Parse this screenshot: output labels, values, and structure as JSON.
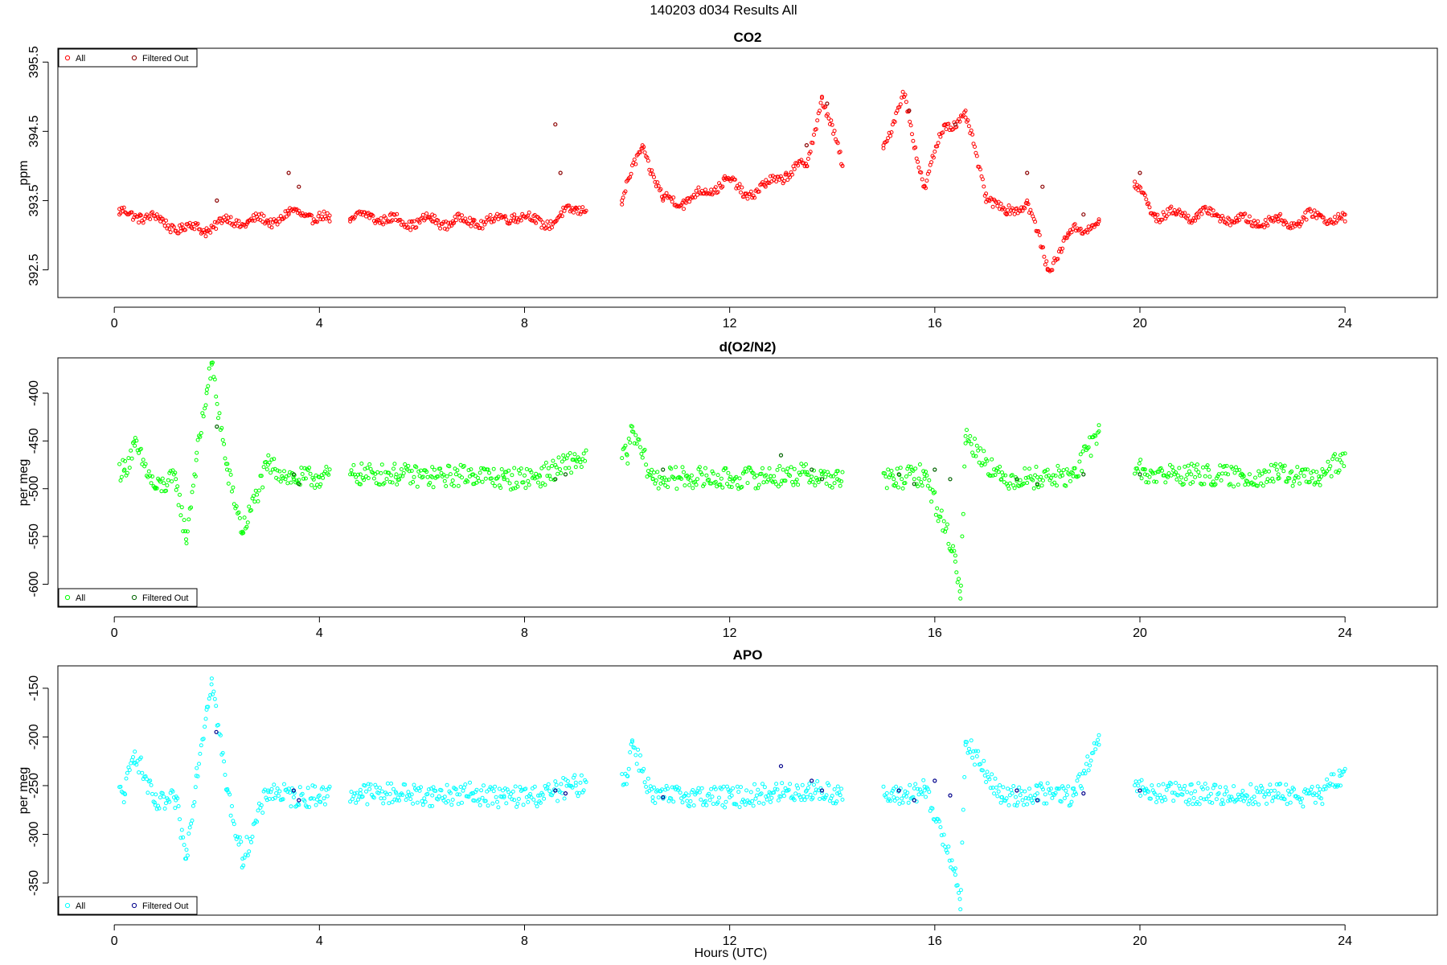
{
  "figure": {
    "title": "140203   d034   Results All",
    "xlabel": "Hours (UTC)"
  },
  "chart_data": [
    {
      "type": "scatter",
      "title": "CO2",
      "ylabel": "ppm",
      "xlim": [
        -1.1,
        25.8
      ],
      "ylim": [
        392.1,
        395.7
      ],
      "xticks": [
        0,
        4,
        8,
        12,
        16,
        20,
        24
      ],
      "yticks": [
        392.5,
        393.5,
        394.5,
        395.5
      ],
      "colors": {
        "all": "#ff0000",
        "filtered": "#8b0000"
      },
      "legend": {
        "position": "top-left",
        "entries": [
          "All",
          "Filtered Out"
        ]
      },
      "segments": [
        [
          0.1,
          4.2
        ],
        [
          4.6,
          9.2
        ],
        [
          9.9,
          14.2
        ],
        [
          15.0,
          19.2
        ],
        [
          19.9,
          24.0
        ]
      ],
      "series": [
        {
          "name": "All",
          "x": [
            0.1,
            0.5,
            0.9,
            1.3,
            1.8,
            2.2,
            2.6,
            3.0,
            3.4,
            3.8,
            4.2,
            4.6,
            5.0,
            5.4,
            5.8,
            6.2,
            6.6,
            7.0,
            7.4,
            7.8,
            8.2,
            8.6,
            9.0,
            9.9,
            10.3,
            10.7,
            11.1,
            11.5,
            11.9,
            12.3,
            12.7,
            13.1,
            13.5,
            13.8,
            14.2,
            15.0,
            15.4,
            15.8,
            16.2,
            16.6,
            17.0,
            17.4,
            17.8,
            18.2,
            18.6,
            19.2,
            19.9,
            20.3,
            20.7,
            21.1,
            21.5,
            21.9,
            22.3,
            22.7,
            23.1,
            23.5,
            24.0
          ],
          "y": [
            393.3,
            393.3,
            393.2,
            393.1,
            393.1,
            393.2,
            393.2,
            393.2,
            393.3,
            393.3,
            393.2,
            393.2,
            393.3,
            393.2,
            393.2,
            393.2,
            393.2,
            393.2,
            393.2,
            393.3,
            393.2,
            393.2,
            393.4,
            393.5,
            394.3,
            393.5,
            393.5,
            393.6,
            393.8,
            393.6,
            393.7,
            393.9,
            394.0,
            395.0,
            394.0,
            394.3,
            395.0,
            393.7,
            394.6,
            394.7,
            393.6,
            393.3,
            393.5,
            392.5,
            393.0,
            393.2,
            393.7,
            393.3,
            393.3,
            393.3,
            393.3,
            393.2,
            393.2,
            393.2,
            393.2,
            393.3,
            393.2
          ]
        },
        {
          "name": "Filtered Out",
          "x": [
            2.0,
            3.4,
            3.6,
            8.6,
            8.7,
            13.5,
            13.9,
            15.5,
            16.4,
            17.8,
            18.1,
            18.9,
            20.0
          ],
          "y": [
            393.5,
            393.9,
            393.7,
            394.6,
            393.9,
            394.3,
            394.9,
            394.8,
            394.6,
            393.9,
            393.7,
            393.3,
            393.9
          ]
        }
      ]
    },
    {
      "type": "scatter",
      "title": "d(O2/N2)",
      "ylabel": "per meg",
      "xlim": [
        -1.1,
        25.8
      ],
      "ylim": [
        -624,
        -363
      ],
      "xticks": [
        0,
        4,
        8,
        12,
        16,
        20,
        24
      ],
      "yticks": [
        -600,
        -550,
        -500,
        -450,
        -400
      ],
      "colors": {
        "all": "#00ff00",
        "filtered": "#006400"
      },
      "legend": {
        "position": "bottom-left",
        "entries": [
          "All",
          "Filtered Out"
        ]
      },
      "segments": [
        [
          0.1,
          4.2
        ],
        [
          4.6,
          9.2
        ],
        [
          9.9,
          14.2
        ],
        [
          15.0,
          19.2
        ],
        [
          19.9,
          24.0
        ]
      ],
      "series": [
        {
          "name": "All",
          "x": [
            0.2,
            0.4,
            0.8,
            1.2,
            1.4,
            1.6,
            1.8,
            1.9,
            2.2,
            2.5,
            3.0,
            3.5,
            4.0,
            4.8,
            5.5,
            6.2,
            7.0,
            7.6,
            8.3,
            9.0,
            10.0,
            10.1,
            10.5,
            11.2,
            12.0,
            12.8,
            13.5,
            14.1,
            15.2,
            15.8,
            16.4,
            16.5,
            16.6,
            17.3,
            18.0,
            18.7,
            19.2,
            20.1,
            21.0,
            22.0,
            22.7,
            23.5,
            23.9
          ],
          "y": [
            -480,
            -455,
            -500,
            -490,
            -553,
            -470,
            -400,
            -370,
            -480,
            -545,
            -475,
            -490,
            -488,
            -485,
            -485,
            -488,
            -485,
            -490,
            -487,
            -470,
            -465,
            -440,
            -490,
            -488,
            -490,
            -487,
            -485,
            -490,
            -490,
            -485,
            -570,
            -615,
            -445,
            -490,
            -488,
            -487,
            -440,
            -485,
            -485,
            -488,
            -485,
            -490,
            -470
          ]
        },
        {
          "name": "Filtered Out",
          "x": [
            2.0,
            3.5,
            3.6,
            8.6,
            8.8,
            10.7,
            13.0,
            13.6,
            13.8,
            15.3,
            15.6,
            16.0,
            16.3,
            17.6,
            18.0,
            18.9,
            20.0
          ],
          "y": [
            -435,
            -485,
            -495,
            -490,
            -485,
            -480,
            -465,
            -480,
            -490,
            -485,
            -495,
            -480,
            -490,
            -490,
            -495,
            -485,
            -485
          ]
        }
      ]
    },
    {
      "type": "scatter",
      "title": "APO",
      "ylabel": "per meg",
      "xlim": [
        -1.1,
        25.8
      ],
      "ylim": [
        -383,
        -127
      ],
      "xticks": [
        0,
        4,
        8,
        12,
        16,
        20,
        24
      ],
      "yticks": [
        -350,
        -300,
        -250,
        -200,
        -150
      ],
      "colors": {
        "all": "#00ffff",
        "filtered": "#00008b"
      },
      "legend": {
        "position": "bottom-left",
        "entries": [
          "All",
          "Filtered Out"
        ]
      },
      "segments": [
        [
          0.1,
          4.2
        ],
        [
          4.6,
          9.2
        ],
        [
          9.9,
          14.2
        ],
        [
          15.0,
          19.2
        ],
        [
          19.9,
          24.0
        ]
      ],
      "series": [
        {
          "name": "All",
          "x": [
            0.2,
            0.4,
            0.8,
            1.2,
            1.4,
            1.6,
            1.8,
            1.9,
            2.2,
            2.5,
            3.0,
            3.5,
            4.0,
            4.8,
            5.5,
            6.2,
            7.0,
            7.6,
            8.3,
            9.0,
            10.0,
            10.1,
            10.5,
            11.2,
            12.0,
            12.8,
            13.5,
            14.1,
            15.2,
            15.8,
            16.4,
            16.5,
            16.6,
            17.3,
            18.0,
            18.7,
            19.2,
            20.1,
            21.0,
            22.0,
            22.7,
            23.5,
            23.9
          ],
          "y": [
            -258,
            -215,
            -270,
            -265,
            -325,
            -240,
            -172,
            -140,
            -255,
            -325,
            -255,
            -262,
            -260,
            -258,
            -258,
            -260,
            -258,
            -262,
            -260,
            -250,
            -240,
            -205,
            -262,
            -260,
            -262,
            -258,
            -255,
            -258,
            -262,
            -255,
            -335,
            -377,
            -205,
            -262,
            -258,
            -260,
            -208,
            -258,
            -258,
            -260,
            -258,
            -262,
            -240
          ]
        },
        {
          "name": "Filtered Out",
          "x": [
            1.99,
            3.5,
            3.6,
            8.6,
            8.8,
            10.7,
            13.0,
            13.6,
            13.8,
            15.3,
            15.6,
            16.0,
            16.3,
            17.6,
            18.0,
            18.9,
            20.0
          ],
          "y": [
            -195,
            -255,
            -265,
            -255,
            -258,
            -262,
            -230,
            -245,
            -255,
            -255,
            -265,
            -245,
            -260,
            -255,
            -265,
            -258,
            -255
          ]
        }
      ]
    }
  ]
}
